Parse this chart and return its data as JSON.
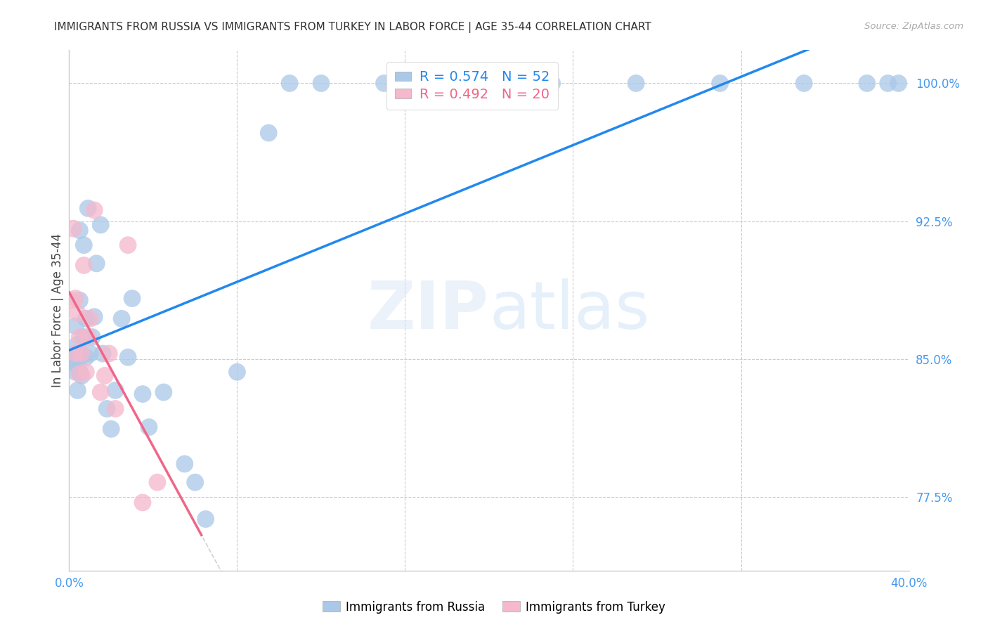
{
  "title": "IMMIGRANTS FROM RUSSIA VS IMMIGRANTS FROM TURKEY IN LABOR FORCE | AGE 35-44 CORRELATION CHART",
  "source": "Source: ZipAtlas.com",
  "ylabel": "In Labor Force | Age 35-44",
  "x_min": 0.0,
  "x_max": 0.4,
  "y_min": 0.735,
  "y_max": 1.018,
  "y_ticks": [
    0.775,
    0.85,
    0.925,
    1.0
  ],
  "y_tick_labels": [
    "77.5%",
    "85.0%",
    "92.5%",
    "100.0%"
  ],
  "russia_R": 0.574,
  "russia_N": 52,
  "turkey_R": 0.492,
  "turkey_N": 20,
  "russia_color": "#aac8e8",
  "turkey_color": "#f5b8cc",
  "russia_line_color": "#2288ee",
  "turkey_line_color": "#ee6688",
  "watermark_zip": "ZIP",
  "watermark_atlas": "atlas",
  "russia_x": [
    0.001,
    0.002,
    0.002,
    0.003,
    0.003,
    0.003,
    0.004,
    0.004,
    0.004,
    0.005,
    0.005,
    0.005,
    0.005,
    0.006,
    0.006,
    0.007,
    0.007,
    0.008,
    0.008,
    0.009,
    0.01,
    0.011,
    0.012,
    0.013,
    0.015,
    0.016,
    0.018,
    0.02,
    0.022,
    0.025,
    0.028,
    0.03,
    0.035,
    0.038,
    0.045,
    0.055,
    0.06,
    0.065,
    0.08,
    0.095,
    0.105,
    0.12,
    0.15,
    0.17,
    0.2,
    0.23,
    0.27,
    0.31,
    0.35,
    0.38,
    0.39,
    0.395
  ],
  "russia_y": [
    0.85,
    0.852,
    0.848,
    0.868,
    0.853,
    0.843,
    0.858,
    0.851,
    0.833,
    0.92,
    0.882,
    0.851,
    0.843,
    0.852,
    0.841,
    0.912,
    0.862,
    0.872,
    0.851,
    0.932,
    0.853,
    0.862,
    0.873,
    0.902,
    0.923,
    0.853,
    0.823,
    0.812,
    0.833,
    0.872,
    0.851,
    0.883,
    0.831,
    0.813,
    0.832,
    0.793,
    0.783,
    0.763,
    0.843,
    0.973,
    1.0,
    1.0,
    1.0,
    1.0,
    1.0,
    1.0,
    1.0,
    1.0,
    1.0,
    1.0,
    1.0,
    1.0
  ],
  "turkey_x": [
    0.001,
    0.002,
    0.003,
    0.003,
    0.004,
    0.005,
    0.005,
    0.006,
    0.007,
    0.008,
    0.009,
    0.01,
    0.012,
    0.015,
    0.017,
    0.019,
    0.022,
    0.028,
    0.035,
    0.042
  ],
  "turkey_y": [
    0.882,
    0.921,
    0.853,
    0.883,
    0.875,
    0.842,
    0.862,
    0.853,
    0.901,
    0.843,
    0.862,
    0.872,
    0.931,
    0.832,
    0.841,
    0.853,
    0.823,
    0.912,
    0.772,
    0.783
  ]
}
